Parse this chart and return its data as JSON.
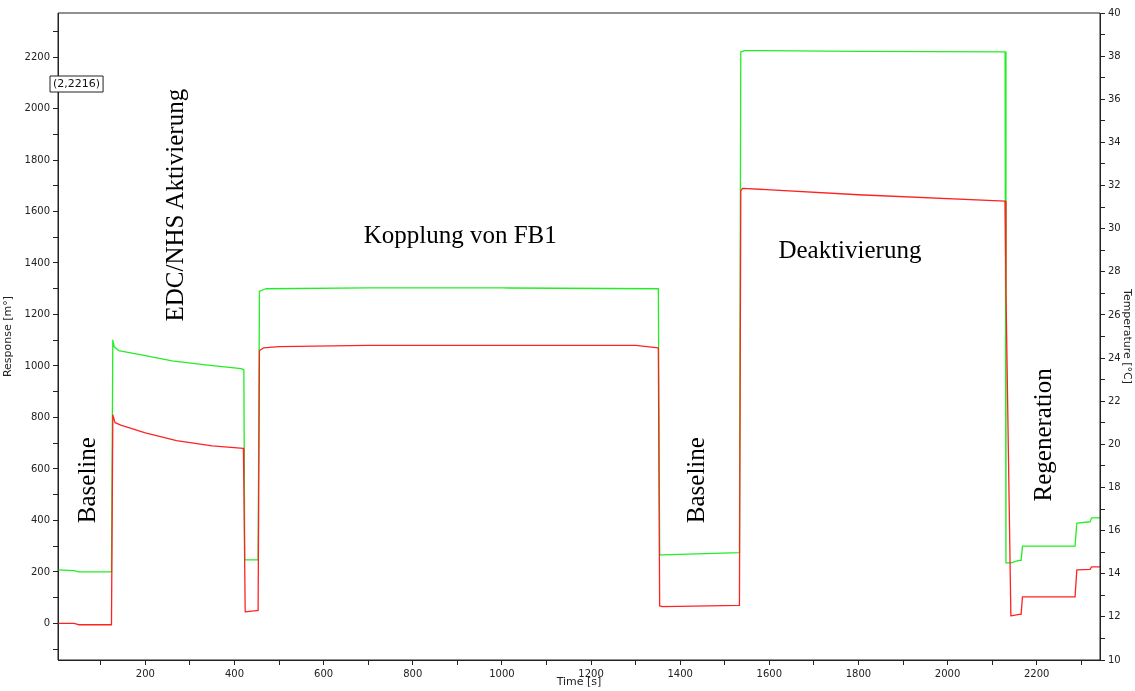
{
  "chart_data": {
    "type": "line",
    "xlabel": "Time [s]",
    "ylabel": "Response [m°]",
    "y2label": "Temperature [°C]",
    "xlim": [
      4,
      2342
    ],
    "ylim": [
      -142,
      2371
    ],
    "y2lim": [
      10,
      40
    ],
    "xticks": [
      {
        "value": 100,
        "label": null
      },
      200,
      {
        "value": 300,
        "label": null
      },
      400,
      {
        "value": 500,
        "label": null
      },
      600,
      {
        "value": 700,
        "label": null
      },
      800,
      {
        "value": 900,
        "label": null
      },
      1000,
      {
        "value": 1100,
        "label": null
      },
      1200,
      {
        "value": 1300,
        "label": null
      },
      1400,
      {
        "value": 1500,
        "label": null
      },
      1600,
      {
        "value": 1700,
        "label": null
      },
      1800,
      {
        "value": 1900,
        "label": null
      },
      2000,
      {
        "value": 2100,
        "label": null
      },
      2200,
      {
        "value": 2300,
        "label": null
      }
    ],
    "yticks": [
      {
        "value": -100,
        "label": null
      },
      0,
      {
        "value": 100,
        "label": null
      },
      200,
      {
        "value": 300,
        "label": null
      },
      400,
      {
        "value": 500,
        "label": null
      },
      600,
      {
        "value": 700,
        "label": null
      },
      800,
      {
        "value": 900,
        "label": null
      },
      1000,
      {
        "value": 1100,
        "label": null
      },
      1200,
      {
        "value": 1300,
        "label": null
      },
      1400,
      {
        "value": 1500,
        "label": null
      },
      1600,
      {
        "value": 1700,
        "label": null
      },
      1800,
      {
        "value": 1900,
        "label": null
      },
      2000,
      {
        "value": 2100,
        "label": null
      },
      2200,
      {
        "value": 2300,
        "label": null
      }
    ],
    "y2ticks": [
      10,
      {
        "value": 11,
        "label": null
      },
      12,
      {
        "value": 13,
        "label": null
      },
      14,
      {
        "value": 15,
        "label": null
      },
      16,
      {
        "value": 17,
        "label": null
      },
      18,
      {
        "value": 19,
        "label": null
      },
      20,
      {
        "value": 21,
        "label": null
      },
      22,
      {
        "value": 23,
        "label": null
      },
      24,
      {
        "value": 25,
        "label": null
      },
      26,
      {
        "value": 27,
        "label": null
      },
      28,
      {
        "value": 29,
        "label": null
      },
      30,
      {
        "value": 31,
        "label": null
      },
      32,
      {
        "value": 33,
        "label": null
      },
      34,
      {
        "value": 35,
        "label": null
      },
      36,
      {
        "value": 37,
        "label": null
      },
      38,
      {
        "value": 39,
        "label": null
      },
      40
    ],
    "grid": false,
    "legend": false,
    "marker": "none",
    "line_style": "solid",
    "series": [
      {
        "color": "#22ee22",
        "x": [
          4,
          40,
          50,
          124,
          127,
          130,
          140,
          200,
          260,
          330,
          415,
          421,
          423,
          453,
          456,
          470,
          700,
          1000,
          1351,
          1354,
          1360,
          1533,
          1536,
          1545,
          1800,
          2129,
          2131,
          2142,
          2160,
          2165,
          2168,
          2286,
          2290,
          2320,
          2323,
          2342
        ],
        "values": [
          208,
          205,
          200,
          200,
          1100,
          1075,
          1060,
          1040,
          1020,
          1005,
          990,
          985,
          247,
          247,
          1290,
          1300,
          1303,
          1303,
          1300,
          266,
          266,
          275,
          2220,
          2225,
          2222,
          2220,
          235,
          235,
          245,
          245,
          300,
          300,
          390,
          395,
          410,
          410
        ]
      },
      {
        "color": "#ff2222",
        "x": [
          4,
          40,
          50,
          124,
          127,
          132,
          145,
          200,
          270,
          350,
          420,
          421,
          424,
          450,
          453,
          456,
          465,
          500,
          700,
          1300,
          1351,
          1354,
          1360,
          1533,
          1536,
          1540,
          1800,
          2129,
          2131,
          2142,
          2160,
          2165,
          2168,
          2286,
          2290,
          2320,
          2323,
          2342
        ],
        "values": [
          0,
          0,
          -5,
          -5,
          810,
          780,
          770,
          740,
          710,
          690,
          680,
          545,
          45,
          50,
          50,
          1060,
          1070,
          1075,
          1080,
          1080,
          1070,
          68,
          65,
          70,
          1680,
          1690,
          1665,
          1640,
          1290,
          29,
          35,
          35,
          103,
          103,
          208,
          210,
          220,
          220
        ]
      }
    ],
    "annotations": [
      "Baseline",
      "EDC/NHS Aktivierung",
      "Kopplung von FB1",
      "Baseline",
      "Deaktivierung",
      "Regeneration",
      "(2,2216)"
    ]
  }
}
